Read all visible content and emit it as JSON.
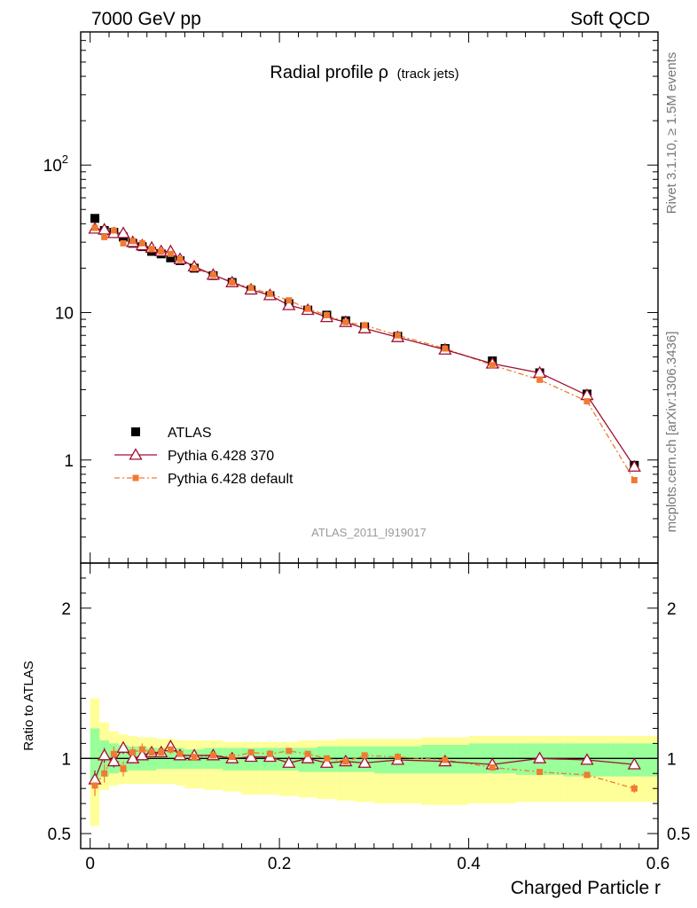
{
  "header": {
    "left": "7000 GeV pp",
    "right": "Soft QCD"
  },
  "side_labels": {
    "rivet": "Rivet 3.1.10, ≥ 1.5M events",
    "mcplots": "mcplots.cern.ch [arXiv:1306.3436]"
  },
  "chart_data": {
    "type": "line",
    "title": "Radial profile ρ",
    "title_suffix": "(track jets)",
    "watermark": "ATLAS_2011_I919017",
    "xlabel": "Charged Particle r",
    "ylabel_ratio": "Ratio to ATLAS",
    "xlim": [
      -0.01,
      0.6
    ],
    "ylim_main": [
      0.2,
      800
    ],
    "ylim_ratio": [
      0.4,
      2.3
    ],
    "yscale_main": "log",
    "x_ticks": [
      {
        "v": 0,
        "label": "0"
      },
      {
        "v": 0.2,
        "label": "0.2"
      },
      {
        "v": 0.4,
        "label": "0.4"
      },
      {
        "v": 0.6,
        "label": "0.6"
      }
    ],
    "y_ticks_main": [
      {
        "v": 1,
        "label": "1"
      },
      {
        "v": 10,
        "label": "10"
      },
      {
        "v": 100,
        "label": "10",
        "sup": "2"
      }
    ],
    "y_ticks_ratio": [
      {
        "v": 0.5,
        "label": "0.5"
      },
      {
        "v": 1,
        "label": "1"
      },
      {
        "v": 2,
        "label": "2"
      }
    ],
    "legend": [
      {
        "label": "ATLAS",
        "color": "#000000",
        "marker": "square"
      },
      {
        "label": "Pythia 6.428 370",
        "color": "#a01030",
        "marker": "triangle"
      },
      {
        "label": "Pythia 6.428 default",
        "color": "#f07a30",
        "marker": "square-small"
      }
    ],
    "x": [
      0.005,
      0.015,
      0.025,
      0.035,
      0.045,
      0.055,
      0.065,
      0.075,
      0.085,
      0.095,
      0.11,
      0.13,
      0.15,
      0.17,
      0.19,
      0.21,
      0.23,
      0.25,
      0.27,
      0.29,
      0.325,
      0.375,
      0.425,
      0.475,
      0.525,
      0.575
    ],
    "bin_edges": [
      0.0,
      0.01,
      0.02,
      0.03,
      0.04,
      0.05,
      0.06,
      0.07,
      0.08,
      0.09,
      0.1,
      0.12,
      0.14,
      0.16,
      0.18,
      0.2,
      0.22,
      0.24,
      0.26,
      0.28,
      0.3,
      0.35,
      0.4,
      0.45,
      0.5,
      0.55,
      0.6
    ],
    "series": [
      {
        "name": "ATLAS",
        "color": "#000000",
        "values": [
          43.5,
          36.0,
          35.0,
          32.5,
          29.5,
          28.0,
          26.0,
          25.0,
          23.5,
          22.5,
          20.0,
          17.8,
          16.0,
          14.2,
          13.0,
          11.5,
          10.4,
          9.6,
          8.8,
          8.0,
          6.9,
          5.7,
          4.7,
          3.9,
          2.8,
          0.92
        ]
      },
      {
        "name": "Pythia 6.428 370",
        "color": "#a01030",
        "values": [
          37.0,
          36.5,
          34.5,
          34.5,
          30.0,
          28.5,
          27.5,
          26.0,
          26.0,
          23.0,
          20.5,
          18.0,
          16.0,
          14.3,
          13.1,
          11.2,
          10.4,
          9.3,
          8.6,
          7.8,
          6.8,
          5.6,
          4.5,
          3.9,
          2.75,
          0.9
        ],
        "ratio": [
          0.86,
          1.02,
          0.98,
          1.07,
          1.0,
          1.02,
          1.04,
          1.04,
          1.08,
          1.02,
          1.02,
          1.02,
          1.0,
          1.01,
          1.01,
          0.97,
          1.0,
          0.97,
          0.98,
          0.97,
          0.99,
          0.98,
          0.96,
          1.0,
          0.99,
          0.96
        ],
        "ratio_err": [
          0.06,
          0.05,
          0.04,
          0.04,
          0.03,
          0.03,
          0.03,
          0.03,
          0.03,
          0.02,
          0.02,
          0.02,
          0.02,
          0.01,
          0.01,
          0.01,
          0.01,
          0.01,
          0.01,
          0.01,
          0.01,
          0.01,
          0.01,
          0.01,
          0.01,
          0.01
        ]
      },
      {
        "name": "Pythia 6.428 default",
        "color": "#f07a30",
        "values": [
          37.5,
          32.5,
          36.0,
          29.5,
          30.5,
          29.5,
          27.0,
          26.0,
          25.0,
          23.0,
          20.0,
          18.0,
          16.0,
          14.7,
          13.4,
          12.1,
          10.6,
          9.6,
          8.6,
          8.2,
          7.0,
          5.7,
          4.4,
          3.5,
          2.5,
          0.73
        ],
        "ratio": [
          0.82,
          0.9,
          1.03,
          0.93,
          1.04,
          1.06,
          1.04,
          1.04,
          1.06,
          1.03,
          1.01,
          1.02,
          1.01,
          1.04,
          1.03,
          1.05,
          1.03,
          1.0,
          0.98,
          1.02,
          1.01,
          0.99,
          0.94,
          0.91,
          0.89,
          0.8
        ],
        "ratio_err": [
          0.07,
          0.06,
          0.05,
          0.05,
          0.04,
          0.04,
          0.03,
          0.03,
          0.03,
          0.03,
          0.02,
          0.02,
          0.02,
          0.01,
          0.01,
          0.01,
          0.01,
          0.01,
          0.01,
          0.01,
          0.01,
          0.01,
          0.01,
          0.01,
          0.01,
          0.03
        ]
      }
    ],
    "uncertainty_bands": {
      "stat": {
        "color": "#99ff99",
        "lo": [
          0.83,
          0.88,
          0.9,
          0.91,
          0.92,
          0.92,
          0.92,
          0.93,
          0.93,
          0.93,
          0.93,
          0.93,
          0.92,
          0.92,
          0.92,
          0.92,
          0.91,
          0.91,
          0.91,
          0.91,
          0.9,
          0.9,
          0.9,
          0.89,
          0.88,
          0.88
        ],
        "hi": [
          1.2,
          1.12,
          1.1,
          1.09,
          1.08,
          1.08,
          1.07,
          1.07,
          1.07,
          1.07,
          1.06,
          1.07,
          1.07,
          1.07,
          1.07,
          1.07,
          1.07,
          1.08,
          1.08,
          1.08,
          1.08,
          1.09,
          1.1,
          1.1,
          1.1,
          1.1
        ]
      },
      "total": {
        "color": "#ffff99",
        "lo": [
          0.55,
          0.79,
          0.82,
          0.83,
          0.83,
          0.83,
          0.83,
          0.83,
          0.83,
          0.82,
          0.8,
          0.79,
          0.78,
          0.76,
          0.76,
          0.75,
          0.74,
          0.73,
          0.72,
          0.71,
          0.7,
          0.69,
          0.7,
          0.71,
          0.71,
          0.71
        ],
        "hi": [
          1.4,
          1.24,
          1.18,
          1.16,
          1.15,
          1.14,
          1.14,
          1.13,
          1.13,
          1.12,
          1.12,
          1.12,
          1.11,
          1.11,
          1.11,
          1.11,
          1.12,
          1.12,
          1.13,
          1.13,
          1.13,
          1.14,
          1.15,
          1.15,
          1.15,
          1.15
        ]
      }
    }
  }
}
